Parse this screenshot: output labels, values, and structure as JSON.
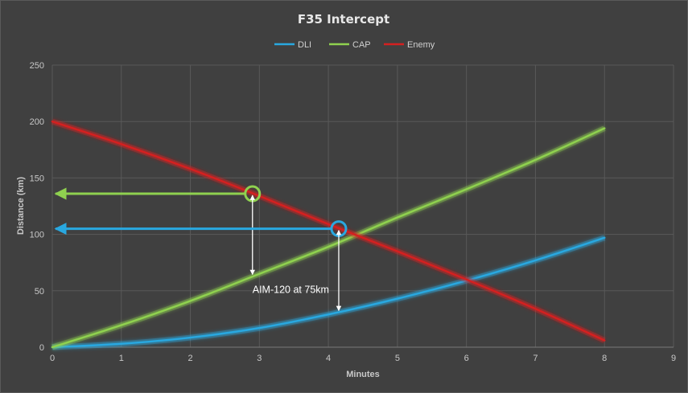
{
  "chart_data": {
    "type": "line",
    "title": "F35 Intercept",
    "xlabel": "Minutes",
    "ylabel": "Distance (km)",
    "xlim": [
      0,
      9
    ],
    "ylim": [
      0,
      250
    ],
    "xticks": [
      0,
      1,
      2,
      3,
      4,
      5,
      6,
      7,
      8,
      9
    ],
    "yticks": [
      0,
      50,
      100,
      150,
      200,
      250
    ],
    "grid": true,
    "legend_position": "top",
    "series": [
      {
        "name": "DLI",
        "color": "#29a8e0",
        "x": [
          0,
          1,
          2,
          3,
          4,
          5,
          6,
          7,
          8
        ],
        "y": [
          0,
          3,
          8.5,
          17,
          29,
          43,
          59,
          77,
          97
        ]
      },
      {
        "name": "CAP",
        "color": "#8fd14f",
        "x": [
          0,
          1,
          2,
          3,
          4,
          5,
          6,
          7,
          8
        ],
        "y": [
          0,
          19.5,
          41,
          65,
          89,
          115,
          140,
          166,
          194
        ]
      },
      {
        "name": "Enemy",
        "color": "#d42020",
        "x": [
          0,
          1,
          2,
          3,
          4,
          5,
          6,
          7,
          8
        ],
        "y": [
          200,
          180,
          158,
          134,
          109,
          85,
          60,
          34,
          6
        ]
      }
    ],
    "markers": [
      {
        "series": "CAP",
        "color": "#8fd14f",
        "x": 2.9,
        "y": 136,
        "arrow_to_x": 0,
        "drop_to_y": 63
      },
      {
        "series": "DLI",
        "color": "#29a8e0",
        "x": 4.15,
        "y": 105,
        "arrow_to_x": 0,
        "drop_to_y": 31
      }
    ],
    "annotations": [
      {
        "text": "AIM-120 at 75km",
        "x": 2.9,
        "y": 48
      }
    ]
  }
}
